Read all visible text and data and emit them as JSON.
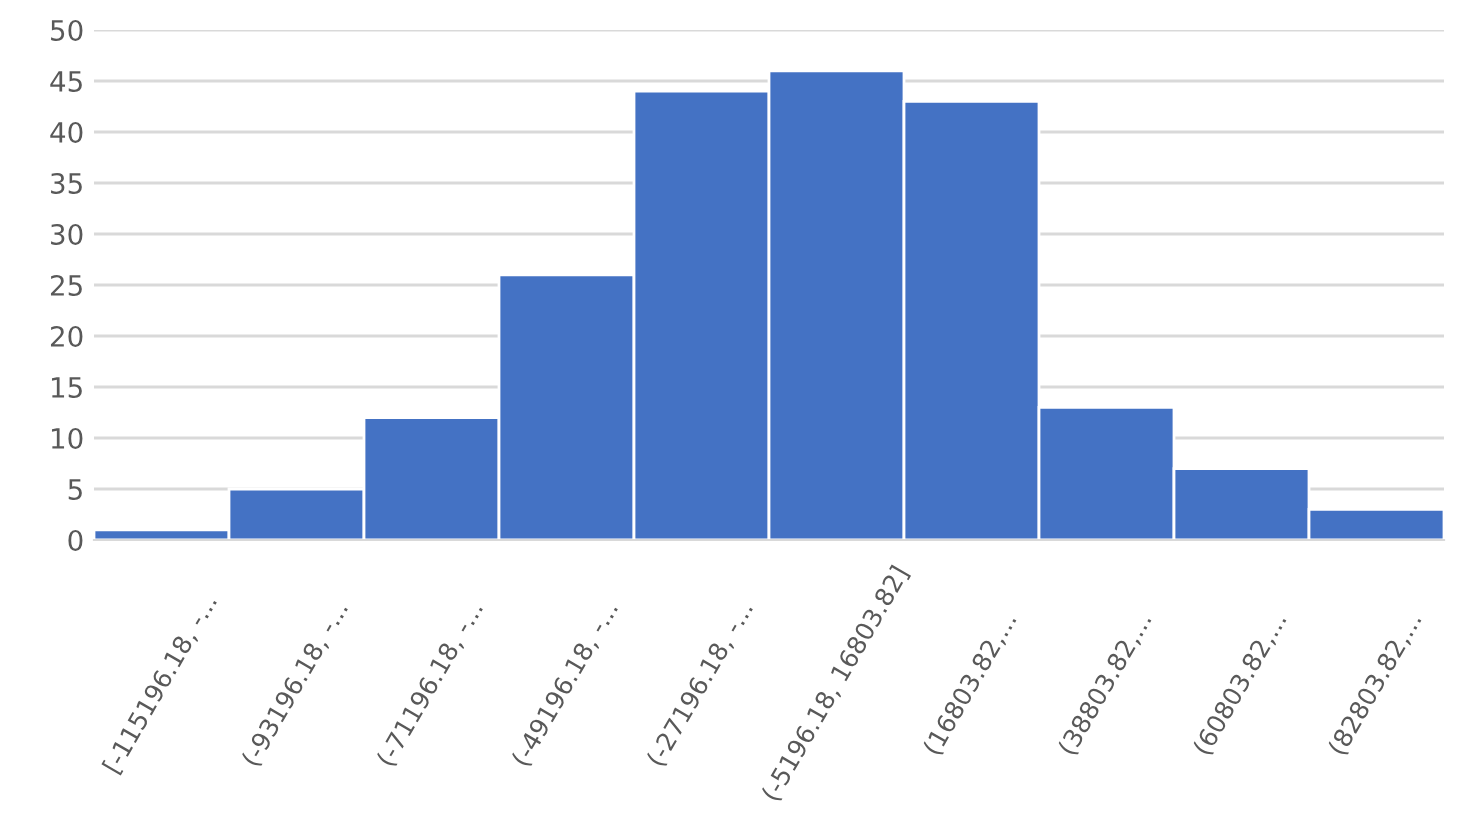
{
  "chart_data": {
    "type": "bar",
    "categories": [
      "[-115196.18, -...",
      "(-93196.18, -...",
      "(-71196.18, -...",
      "(-49196.18, -...",
      "(-27196.18, -...",
      "(-5196.18, 16803.82]",
      "(16803.82,...",
      "(38803.82,...",
      "(60803.82,...",
      "(82803.82,..."
    ],
    "values": [
      1,
      5,
      12,
      26,
      44,
      46,
      43,
      13,
      7,
      3
    ],
    "color": "#4472c4",
    "ylim": [
      0,
      50
    ],
    "yticks": [
      0,
      5,
      10,
      15,
      20,
      25,
      30,
      35,
      40,
      45,
      50
    ],
    "grid": "y",
    "legend": false
  }
}
